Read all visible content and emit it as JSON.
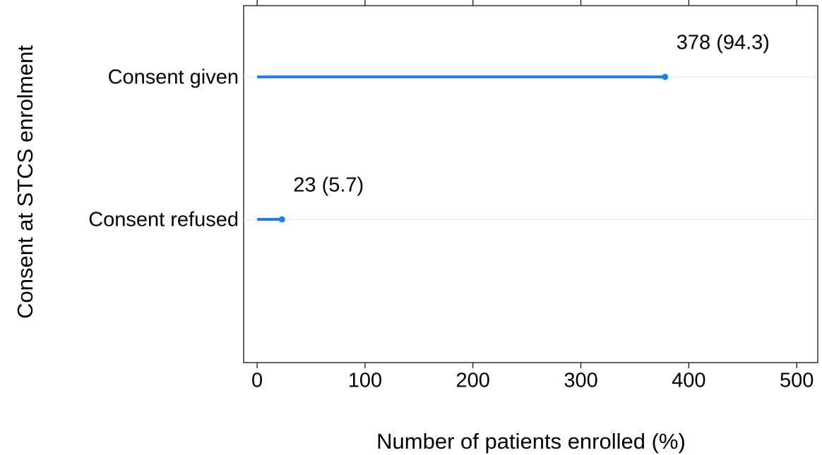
{
  "chart_data": {
    "type": "lollipop",
    "orientation": "horizontal",
    "x_label": "Number of patients enrolled (%)",
    "y_label": "Consent at STCS enrolment",
    "categories": [
      "Consent given",
      "Consent refused"
    ],
    "values": [
      378,
      23
    ],
    "value_labels": [
      "378 (94.3)",
      "23 (5.7)"
    ],
    "color": "#1a7fe6",
    "xlim": [
      -12.5,
      519.5
    ],
    "xticks": [
      0,
      100,
      200,
      300,
      400,
      500
    ],
    "grid": true
  }
}
